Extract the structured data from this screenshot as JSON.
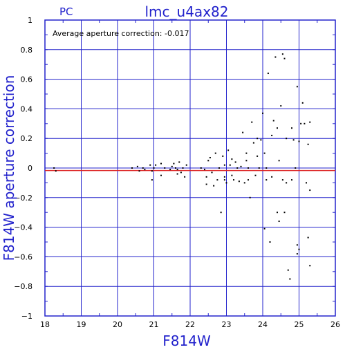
{
  "chart_data": {
    "type": "scatter",
    "title": "lmc_u4ax82",
    "corner_label": "PC",
    "annotation": "Average aperture correction:  -0.017",
    "xlabel": "F814W",
    "ylabel": "F814W aperture correction",
    "xlim": [
      18,
      26
    ],
    "ylim": [
      -1,
      1
    ],
    "x_ticks": [
      18,
      19,
      20,
      21,
      22,
      23,
      24,
      25,
      26
    ],
    "y_ticks": [
      -1,
      -0.8,
      -0.6,
      -0.4,
      -0.2,
      0,
      0.2,
      0.4,
      0.6,
      0.8,
      1
    ],
    "x_tick_labels": [
      "18",
      "19",
      "20",
      "21",
      "22",
      "23",
      "24",
      "25",
      "26"
    ],
    "y_tick_labels": [
      "−1",
      "−0.8",
      "−0.6",
      "−0.4",
      "−0.2",
      "0",
      "0.2",
      "0.4",
      "0.6",
      "0.8",
      "1"
    ],
    "grid": true,
    "reference_line": {
      "y": -0.017,
      "color": "#dd2222"
    },
    "colors": {
      "axes": "#2222cc",
      "points": "#000000"
    },
    "points": [
      [
        18.25,
        0.0
      ],
      [
        18.3,
        -0.02
      ],
      [
        20.4,
        0.0
      ],
      [
        20.55,
        0.01
      ],
      [
        20.6,
        -0.02
      ],
      [
        20.7,
        0.0
      ],
      [
        20.75,
        -0.01
      ],
      [
        20.9,
        0.02
      ],
      [
        20.95,
        -0.02
      ],
      [
        21.0,
        0.0
      ],
      [
        21.05,
        0.02
      ],
      [
        20.95,
        -0.08
      ],
      [
        21.2,
        -0.05
      ],
      [
        21.2,
        0.03
      ],
      [
        21.3,
        0.0
      ],
      [
        21.45,
        -0.01
      ],
      [
        21.5,
        0.01
      ],
      [
        21.55,
        0.03
      ],
      [
        21.6,
        0.0
      ],
      [
        21.65,
        -0.01
      ],
      [
        21.7,
        0.04
      ],
      [
        21.75,
        -0.03
      ],
      [
        21.8,
        0.0
      ],
      [
        21.85,
        -0.06
      ],
      [
        21.9,
        0.02
      ],
      [
        21.65,
        -0.04
      ],
      [
        22.3,
        0.0
      ],
      [
        22.4,
        -0.01
      ],
      [
        22.5,
        0.05
      ],
      [
        22.55,
        0.07
      ],
      [
        22.6,
        -0.03
      ],
      [
        22.45,
        -0.06
      ],
      [
        22.45,
        -0.11
      ],
      [
        22.7,
        0.1
      ],
      [
        22.75,
        -0.08
      ],
      [
        22.8,
        0.0
      ],
      [
        22.85,
        -0.3
      ],
      [
        22.9,
        0.08
      ],
      [
        22.95,
        0.02
      ],
      [
        22.95,
        -0.06
      ],
      [
        23.0,
        -0.1
      ],
      [
        23.05,
        0.12
      ],
      [
        23.1,
        0.02
      ],
      [
        23.15,
        -0.05
      ],
      [
        23.2,
        -0.08
      ],
      [
        23.25,
        0.04
      ],
      [
        23.3,
        0.0
      ],
      [
        23.35,
        -0.09
      ],
      [
        23.45,
        0.24
      ],
      [
        23.5,
        -0.1
      ],
      [
        23.55,
        0.1
      ],
      [
        23.55,
        0.05
      ],
      [
        23.6,
        0.0
      ],
      [
        23.65,
        -0.2
      ],
      [
        23.7,
        0.31
      ],
      [
        23.75,
        0.17
      ],
      [
        23.8,
        -0.05
      ],
      [
        23.85,
        0.08
      ],
      [
        23.85,
        0.2
      ],
      [
        23.9,
        0.0
      ],
      [
        23.95,
        0.19
      ],
      [
        24.0,
        0.37
      ],
      [
        24.05,
        0.1
      ],
      [
        24.05,
        -0.41
      ],
      [
        24.1,
        -0.08
      ],
      [
        24.1,
        0.0
      ],
      [
        24.15,
        0.64
      ],
      [
        24.2,
        -0.5
      ],
      [
        24.25,
        0.22
      ],
      [
        24.3,
        0.32
      ],
      [
        24.35,
        0.75
      ],
      [
        24.4,
        0.27
      ],
      [
        24.4,
        -0.3
      ],
      [
        24.45,
        -0.36
      ],
      [
        24.45,
        0.05
      ],
      [
        24.5,
        0.42
      ],
      [
        24.55,
        -0.08
      ],
      [
        24.55,
        0.77
      ],
      [
        24.6,
        -0.3
      ],
      [
        24.6,
        0.74
      ],
      [
        24.65,
        0.2
      ],
      [
        24.65,
        -0.1
      ],
      [
        24.7,
        -0.69
      ],
      [
        24.75,
        -0.75
      ],
      [
        24.8,
        -0.08
      ],
      [
        24.8,
        0.27
      ],
      [
        24.85,
        0.19
      ],
      [
        24.9,
        0.0
      ],
      [
        24.95,
        -0.52
      ],
      [
        24.95,
        -0.58
      ],
      [
        24.95,
        0.55
      ],
      [
        25.0,
        0.18
      ],
      [
        25.0,
        -0.55
      ],
      [
        25.05,
        0.3
      ],
      [
        25.1,
        0.44
      ],
      [
        25.15,
        0.3
      ],
      [
        25.2,
        -0.1
      ],
      [
        25.25,
        0.16
      ],
      [
        25.25,
        -0.47
      ],
      [
        25.3,
        0.31
      ],
      [
        25.3,
        -0.15
      ],
      [
        25.3,
        -0.66
      ],
      [
        23.15,
        0.06
      ],
      [
        23.4,
        0.01
      ],
      [
        24.25,
        -0.06
      ],
      [
        23.6,
        -0.08
      ],
      [
        22.65,
        -0.12
      ],
      [
        22.95,
        -0.08
      ]
    ]
  }
}
